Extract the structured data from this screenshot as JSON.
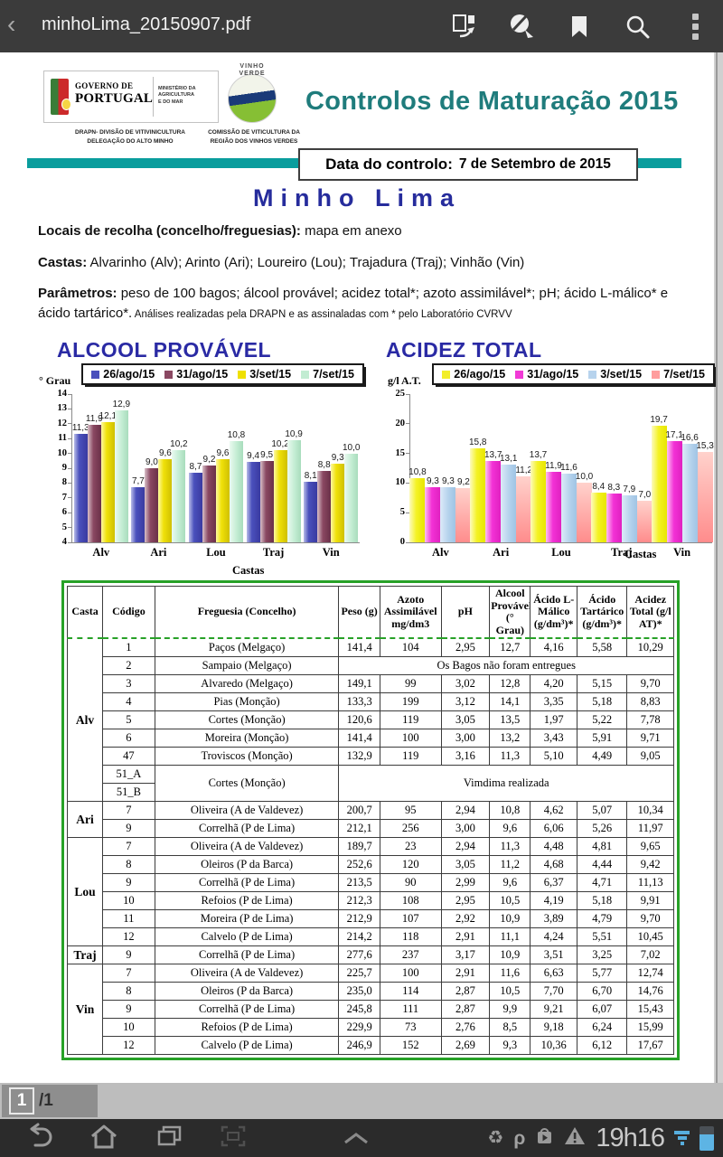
{
  "top_bar": {
    "title": "minhoLima_20150907.pdf",
    "back_glyph": "‹",
    "icons": [
      "extract-pages",
      "highlighter",
      "bookmark",
      "search",
      "overflow-menu"
    ]
  },
  "doc": {
    "gov": {
      "l1": "GOVERNO DE",
      "l2": "PORTUGAL",
      "ministry1": "MINISTÉRIO DA AGRICULTURA",
      "ministry2": "E DO MAR",
      "sub1": "DRAPN- DIVISÃO DE VITIVINICULTURA",
      "sub2": "DELEGAÇÃO DO ALTO MINHO"
    },
    "vv": {
      "l1": "VINHO",
      "l2": "VERDE",
      "sub1": "COMISSÃO DE VITICULTURA DA",
      "sub2": "REGIÃO DOS  VINHOS  VERDES"
    },
    "title": "Controlos de Maturação 2015",
    "date_label": "Data do controlo:",
    "date_value": "7 de Setembro de 2015",
    "region": "Minho Lima",
    "locais_label": "Locais de recolha (concelho/freguesias):",
    "locais_value": " mapa em anexo",
    "castas_label": "Castas:",
    "castas_value": " Alvarinho (Alv); Arinto (Ari); Loureiro (Lou); Trajadura (Traj); Vinhão (Vin)",
    "param_label": "Parâmetros:",
    "param_value": " peso de 100 bagos; álcool provável; acidez total*; azoto assimilável*; pH; ácido L-málico* e ácido tartárico*.",
    "param_note": " Análises realizadas pela DRAPN e as assinaladas com * pelo Laboratório CVRVV"
  },
  "chart_data": [
    {
      "type": "bar",
      "title": "ALCOOL PROVÁVEL",
      "ylabel": "° Grau",
      "xlabel": "Castas",
      "ylim": [
        4,
        14
      ],
      "ytick_step": 1,
      "grid": false,
      "legend_position": "top-right",
      "categories": [
        "Alv",
        "Ari",
        "Lou",
        "Traj",
        "Vin"
      ],
      "series": [
        {
          "name": "26/ago/15",
          "color": "#4a50bc",
          "values": [
            11.3,
            7.7,
            8.7,
            9.4,
            8.1
          ]
        },
        {
          "name": "31/ago/15",
          "color": "#8a4862",
          "values": [
            11.9,
            9.0,
            9.2,
            9.5,
            8.8
          ]
        },
        {
          "name": "3/set/15",
          "color": "#efe000",
          "values": [
            12.1,
            9.6,
            9.6,
            10.2,
            9.3
          ]
        },
        {
          "name": "7/set/15",
          "color": "#c2ecd2",
          "values": [
            12.9,
            10.2,
            10.8,
            10.9,
            10.0
          ]
        }
      ]
    },
    {
      "type": "bar",
      "title": "ACIDEZ TOTAL",
      "ylabel": "g/l A.T.",
      "xlabel": "Castas",
      "ylim": [
        0,
        25
      ],
      "ytick_step": 5,
      "grid": false,
      "legend_position": "top-right",
      "categories": [
        "Alv",
        "Ari",
        "Lou",
        "Traj",
        "Vin"
      ],
      "series": [
        {
          "name": "26/ago/15",
          "color": "#f2ee2a",
          "values": [
            10.8,
            15.8,
            13.7,
            8.4,
            19.7
          ]
        },
        {
          "name": "31/ago/15",
          "color": "#f13ad6",
          "values": [
            9.3,
            13.7,
            11.9,
            8.3,
            17.1
          ]
        },
        {
          "name": "3/set/15",
          "color": "#b7d3ed",
          "values": [
            9.3,
            13.1,
            11.6,
            7.9,
            16.6
          ]
        },
        {
          "name": "7/set/15",
          "color": "#ff9d9d",
          "values": [
            9.2,
            11.2,
            10.0,
            7.0,
            15.3
          ]
        }
      ]
    }
  ],
  "table": {
    "headers": [
      "Casta",
      "Código",
      "Freguesia (Concelho)",
      "Peso (g)",
      "Azoto Assimilável mg/dm3",
      "pH",
      "Alcool Provável (° Grau)",
      "Ácido L-Málico (g/dm³)*",
      "Ácido Tartárico (g/dm³)*",
      "Acidez Total (g/l AT)*"
    ],
    "groups": [
      {
        "casta": "Alv",
        "rows": [
          {
            "codigo": "1",
            "freguesia": "Paços (Melgaço)",
            "values": [
              "141,4",
              "104",
              "2,95",
              "12,7",
              "4,16",
              "5,58",
              "10,29"
            ]
          },
          {
            "codigo": "2",
            "freguesia": "Sampaio (Melgaço)",
            "message": "Os Bagos não foram entregues"
          },
          {
            "codigo": "3",
            "freguesia": "Alvaredo (Melgaço)",
            "values": [
              "149,1",
              "99",
              "3,02",
              "12,8",
              "4,20",
              "5,15",
              "9,70"
            ]
          },
          {
            "codigo": "4",
            "freguesia": "Pias (Monção)",
            "values": [
              "133,3",
              "199",
              "3,12",
              "14,1",
              "3,35",
              "5,18",
              "8,83"
            ]
          },
          {
            "codigo": "5",
            "freguesia": "Cortes (Monção)",
            "values": [
              "120,6",
              "119",
              "3,05",
              "13,5",
              "1,97",
              "5,22",
              "7,78"
            ]
          },
          {
            "codigo": "6",
            "freguesia": "Moreira (Monção)",
            "values": [
              "141,4",
              "100",
              "3,00",
              "13,2",
              "3,43",
              "5,91",
              "9,71"
            ]
          },
          {
            "codigo": "47",
            "freguesia": "Troviscos (Monção)",
            "values": [
              "132,9",
              "119",
              "3,16",
              "11,3",
              "5,10",
              "4,49",
              "9,05"
            ]
          },
          {
            "codigo": "51_A",
            "freguesia": "Cortes (Monção)",
            "message": "Vimdima realizada",
            "span2": true
          },
          {
            "codigo": "51_B",
            "cont": true
          }
        ]
      },
      {
        "casta": "Ari",
        "rows": [
          {
            "codigo": "7",
            "freguesia": "Oliveira (A de Valdevez)",
            "values": [
              "200,7",
              "95",
              "2,94",
              "10,8",
              "4,62",
              "5,07",
              "10,34"
            ]
          },
          {
            "codigo": "9",
            "freguesia": "Correlhã (P de Lima)",
            "values": [
              "212,1",
              "256",
              "3,00",
              "9,6",
              "6,06",
              "5,26",
              "11,97"
            ]
          }
        ]
      },
      {
        "casta": "Lou",
        "rows": [
          {
            "codigo": "7",
            "freguesia": "Oliveira (A de Valdevez)",
            "values": [
              "189,7",
              "23",
              "2,94",
              "11,3",
              "4,48",
              "4,81",
              "9,65"
            ]
          },
          {
            "codigo": "8",
            "freguesia": "Oleiros (P da Barca)",
            "values": [
              "252,6",
              "120",
              "3,05",
              "11,2",
              "4,68",
              "4,44",
              "9,42"
            ]
          },
          {
            "codigo": "9",
            "freguesia": "Correlhã (P de Lima)",
            "values": [
              "213,5",
              "90",
              "2,99",
              "9,6",
              "6,37",
              "4,71",
              "11,13"
            ]
          },
          {
            "codigo": "10",
            "freguesia": "Refoios (P de Lima)",
            "values": [
              "212,3",
              "108",
              "2,95",
              "10,5",
              "4,19",
              "5,18",
              "9,91"
            ]
          },
          {
            "codigo": "11",
            "freguesia": "Moreira (P de Lima)",
            "values": [
              "212,9",
              "107",
              "2,92",
              "10,9",
              "3,89",
              "4,79",
              "9,70"
            ]
          },
          {
            "codigo": "12",
            "freguesia": "Calvelo (P de Lima)",
            "values": [
              "214,2",
              "118",
              "2,91",
              "11,1",
              "4,24",
              "5,51",
              "10,45"
            ]
          }
        ]
      },
      {
        "casta": "Traj",
        "rows": [
          {
            "codigo": "9",
            "freguesia": "Correlhã (P de Lima)",
            "values": [
              "277,6",
              "237",
              "3,17",
              "10,9",
              "3,51",
              "3,25",
              "7,02"
            ]
          }
        ]
      },
      {
        "casta": "Vin",
        "rows": [
          {
            "codigo": "7",
            "freguesia": "Oliveira (A de Valdevez)",
            "values": [
              "225,7",
              "100",
              "2,91",
              "11,6",
              "6,63",
              "5,77",
              "12,74"
            ]
          },
          {
            "codigo": "8",
            "freguesia": "Oleiros (P da Barca)",
            "values": [
              "235,0",
              "114",
              "2,87",
              "10,5",
              "7,70",
              "6,70",
              "14,76"
            ]
          },
          {
            "codigo": "9",
            "freguesia": "Correlhã (P de Lima)",
            "values": [
              "245,8",
              "111",
              "2,87",
              "9,9",
              "9,21",
              "6,07",
              "15,43"
            ]
          },
          {
            "codigo": "10",
            "freguesia": "Refoios (P de Lima)",
            "values": [
              "229,9",
              "73",
              "2,76",
              "8,5",
              "9,18",
              "6,24",
              "15,99"
            ]
          },
          {
            "codigo": "12",
            "freguesia": "Calvelo (P de Lima)",
            "values": [
              "246,9",
              "152",
              "2,69",
              "9,3",
              "10,36",
              "6,12",
              "17,67"
            ]
          }
        ]
      }
    ]
  },
  "page_indicator": {
    "current": "1",
    "total": "/1"
  },
  "nav": {
    "time": "19h16",
    "recycle_glyph": "♻",
    "rho_glyph": "ρ"
  },
  "colors": {
    "teal_accent": "#0a9d9d",
    "title_teal": "#1f7c7c",
    "region_navy": "#262c9c",
    "table_green": "#27a127"
  }
}
